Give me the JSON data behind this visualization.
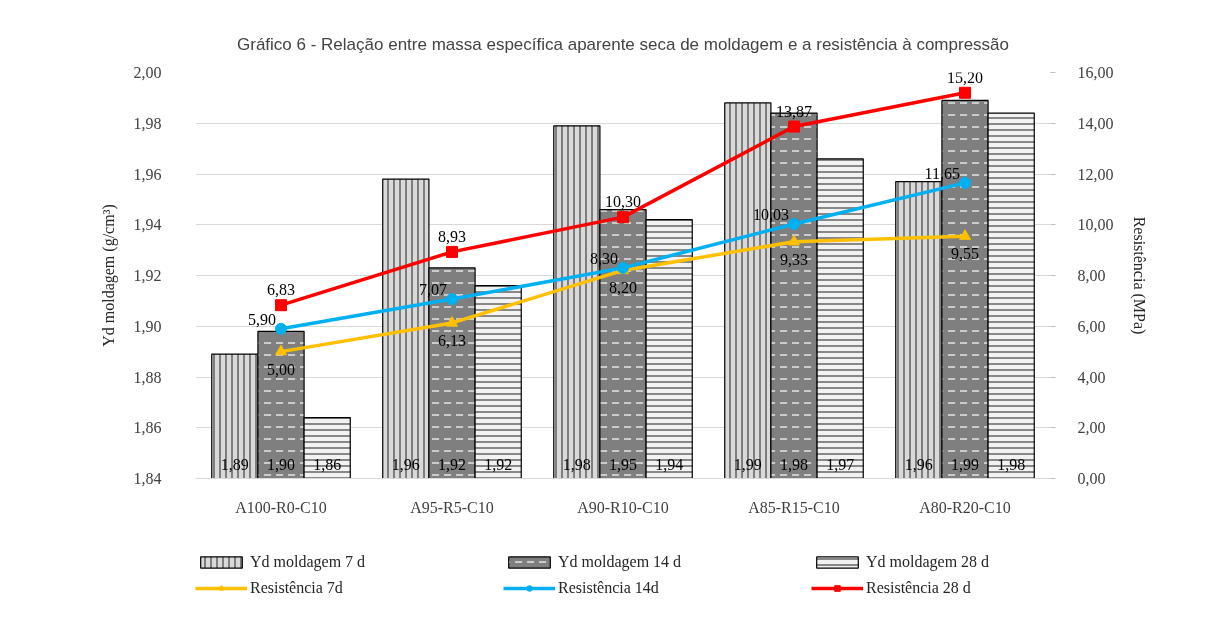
{
  "chart_data": {
    "type": "bar",
    "title": "Gráfico 6 - Relação entre massa específica aparente seca de moldagem e a resistência à compressão",
    "ylabel": "Yd moldagem (g/cm³)",
    "y2label": "Resistência (MPa)",
    "categories": [
      "A100-R0-C10",
      "A95-R5-C10",
      "A90-R10-C10",
      "A85-R15-C10",
      "A80-R20-C10"
    ],
    "series": [
      {
        "name": "Yd moldagem 7 d",
        "color": "#d9d9d9",
        "values": [
          1.889,
          1.958,
          1.979,
          1.988,
          1.957
        ],
        "value_labels": [
          "1,89",
          "1,96",
          "1,98",
          "1,99",
          "1,96"
        ]
      },
      {
        "name": "Yd moldagem 14 d",
        "color": "#7f7f7f",
        "values": [
          1.898,
          1.923,
          1.946,
          1.984,
          1.989
        ],
        "value_labels": [
          "1,90",
          "1,92",
          "1,95",
          "1,98",
          "1,99"
        ]
      },
      {
        "name": "Yd moldagem 28 d",
        "color": "#f2f2f2",
        "values": [
          1.864,
          1.916,
          1.942,
          1.966,
          1.984
        ],
        "value_labels": [
          "1,86",
          "1,92",
          "1,94",
          "1,97",
          "1,98"
        ]
      },
      {
        "name": "Resistência 7d",
        "type": "line",
        "axis": "y2",
        "color": "#ffc000",
        "marker": "triangle",
        "values": [
          5.0,
          6.13,
          8.2,
          9.33,
          9.55
        ],
        "value_labels": [
          "5,00",
          "6,13",
          "8,20",
          "9,33",
          "9,55"
        ]
      },
      {
        "name": "Resistência 14d",
        "type": "line",
        "axis": "y2",
        "color": "#00b0f0",
        "marker": "circle",
        "values": [
          5.9,
          7.07,
          8.3,
          10.03,
          11.65
        ],
        "value_labels": [
          "5,90",
          "7,07",
          "8,30",
          "10,03",
          "11,65"
        ]
      },
      {
        "name": "Resistência 28 d",
        "type": "line",
        "axis": "y2",
        "color": "#ff0000",
        "marker": "square",
        "values": [
          6.83,
          8.93,
          10.3,
          13.87,
          15.2
        ],
        "value_labels": [
          "6,83",
          "8,93",
          "10,30",
          "13,87",
          "15,20"
        ]
      }
    ],
    "ylim": [
      1.84,
      2.0
    ],
    "yticks": [
      {
        "value": 1.84,
        "label": "1,84"
      },
      {
        "value": 1.86,
        "label": "1,86"
      },
      {
        "value": 1.88,
        "label": "1,88"
      },
      {
        "value": 1.9,
        "label": "1,90"
      },
      {
        "value": 1.92,
        "label": "1,92"
      },
      {
        "value": 1.94,
        "label": "1,94"
      },
      {
        "value": 1.96,
        "label": "1,96"
      },
      {
        "value": 1.98,
        "label": "1,98"
      },
      {
        "value": 2.0,
        "label": "2,00"
      }
    ],
    "y2lim": [
      0,
      16
    ],
    "y2ticks": [
      {
        "value": 0,
        "label": "0,00"
      },
      {
        "value": 2,
        "label": "2,00"
      },
      {
        "value": 4,
        "label": "4,00"
      },
      {
        "value": 6,
        "label": "6,00"
      },
      {
        "value": 8,
        "label": "8,00"
      },
      {
        "value": 10,
        "label": "10,00"
      },
      {
        "value": 12,
        "label": "12,00"
      },
      {
        "value": 14,
        "label": "14,00"
      },
      {
        "value": 16,
        "label": "16,00"
      }
    ],
    "grid": "y",
    "legend": "bottom"
  }
}
